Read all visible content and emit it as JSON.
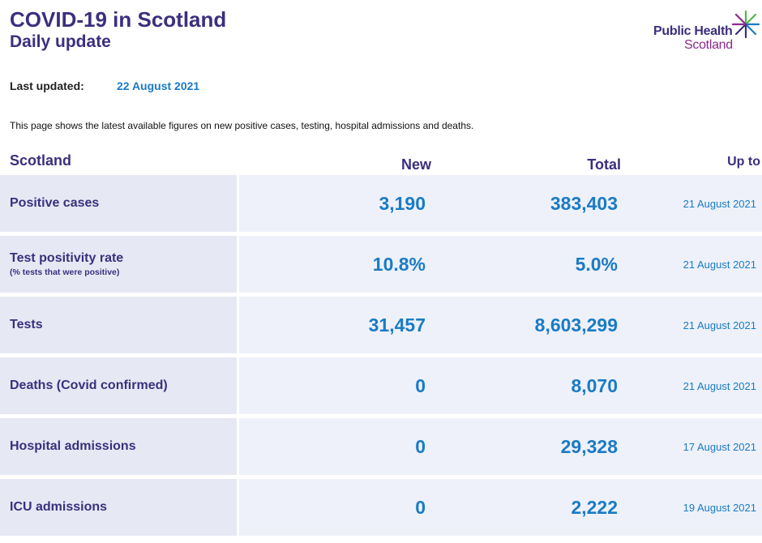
{
  "header": {
    "title": "COVID-19 in Scotland",
    "subtitle": "Daily update",
    "logo_line1": "Public Health",
    "logo_line2": "Scotland"
  },
  "updated": {
    "label": "Last updated:",
    "value": "22 August 2021"
  },
  "intro": "This page shows the latest available figures on new positive cases, testing, hospital admissions and deaths.",
  "table": {
    "headers": {
      "region": "Scotland",
      "new": "New",
      "total": "Total",
      "upto": "Up to"
    },
    "rows": [
      {
        "label": "Positive cases",
        "sublabel": "",
        "new": "3,190",
        "total": "383,403",
        "upto": "21 August 2021"
      },
      {
        "label": "Test positivity rate",
        "sublabel": "(% tests that were positive)",
        "new": "10.8%",
        "total": "5.0%",
        "upto": "21 August 2021"
      },
      {
        "label": "Tests",
        "sublabel": "",
        "new": "31,457",
        "total": "8,603,299",
        "upto": "21 August 2021"
      },
      {
        "label": "Deaths (Covid confirmed)",
        "sublabel": "",
        "new": "0",
        "total": "8,070",
        "upto": "21 August 2021"
      },
      {
        "label": "Hospital admissions",
        "sublabel": "",
        "new": "0",
        "total": "29,328",
        "upto": "17 August 2021"
      },
      {
        "label": "ICU admissions",
        "sublabel": "",
        "new": "0",
        "total": "2,222",
        "upto": "19 August 2021"
      }
    ]
  },
  "colors": {
    "brand_purple": "#3b2f7e",
    "accent_blue": "#1a7bc4",
    "logo_magenta": "#8b2a8b",
    "logo_green": "#4fb848"
  }
}
